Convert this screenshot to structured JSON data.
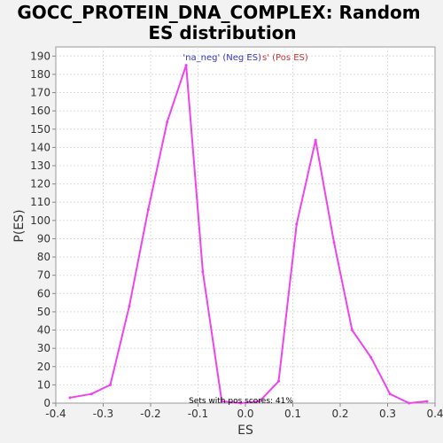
{
  "chart_data": {
    "type": "line",
    "title_line1": "GOCC_PROTEIN_DNA_COMPLEX: Random",
    "title_line2": "ES distribution",
    "xlabel": "ES",
    "ylabel": "P(ES)",
    "xlim": [
      -0.4,
      0.4
    ],
    "ylim": [
      0,
      195
    ],
    "xticks": [
      -0.4,
      -0.3,
      -0.2,
      -0.1,
      0.0,
      0.1,
      0.2,
      0.3,
      0.4
    ],
    "xtick_labels": [
      "-0.4",
      "-0.3",
      "-0.2",
      "-0.1",
      "0.0",
      "0.1",
      "0.2",
      "0.3",
      "0.4"
    ],
    "yticks": [
      0,
      10,
      20,
      30,
      40,
      50,
      60,
      70,
      80,
      90,
      100,
      110,
      120,
      130,
      140,
      150,
      160,
      170,
      180,
      190
    ],
    "grid": true,
    "legend": {
      "neg_label": "'na_neg' (Neg ES)",
      "pos_label": "s' (Pos ES)",
      "neg_color": "#3333cc",
      "pos_color": "#cc3333"
    },
    "annotation": "Sets with pos scores: 41%",
    "series": [
      {
        "color": "#ee44ee",
        "x": [
          -0.37,
          -0.325,
          -0.285,
          -0.245,
          -0.205,
          -0.165,
          -0.125,
          -0.09,
          -0.05,
          -0.01,
          0.03,
          0.07,
          0.108,
          0.148,
          0.187,
          0.225,
          0.265,
          0.305,
          0.345,
          0.383
        ],
        "y": [
          3,
          5,
          10,
          53,
          106,
          154,
          185,
          72,
          1,
          0,
          1,
          12,
          98,
          144,
          88,
          40,
          25,
          5,
          0,
          1
        ]
      }
    ]
  }
}
